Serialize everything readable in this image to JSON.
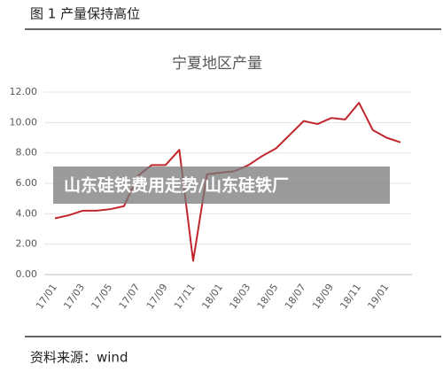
{
  "caption": "图 1  产量保持高位",
  "source": "资料来源：wind",
  "overlay": "山东硅铁费用走势/山东硅铁厂",
  "chart_data": {
    "type": "line",
    "title": "宁夏地区产量",
    "categories": [
      "17/01",
      null,
      "17/03",
      null,
      "17/05",
      null,
      "17/07",
      null,
      "17/09",
      null,
      "17/11",
      null,
      "18/01",
      null,
      "18/03",
      null,
      "18/05",
      null,
      "18/07",
      null,
      "18/09",
      null,
      "18/11",
      null,
      "19/01",
      null
    ],
    "series": [
      {
        "name": "宁夏地区产量",
        "color": "#c0272d",
        "values": [
          3.7,
          3.9,
          4.2,
          4.2,
          4.3,
          4.5,
          6.5,
          7.2,
          7.2,
          8.2,
          0.9,
          6.6,
          6.7,
          6.8,
          7.2,
          7.8,
          8.3,
          9.2,
          10.1,
          9.9,
          10.3,
          10.2,
          11.3,
          9.5,
          9.0,
          8.7
        ]
      }
    ],
    "ylim": [
      0,
      12
    ],
    "yticks": [
      {
        "value": 0,
        "label": "0.00"
      },
      {
        "value": 2,
        "label": "2.00"
      },
      {
        "value": 4,
        "label": "4.00"
      },
      {
        "value": 6,
        "label": "6.00"
      },
      {
        "value": 8,
        "label": "8.00"
      },
      {
        "value": 10,
        "label": "10.00"
      },
      {
        "value": 12,
        "label": "12.00"
      }
    ]
  }
}
